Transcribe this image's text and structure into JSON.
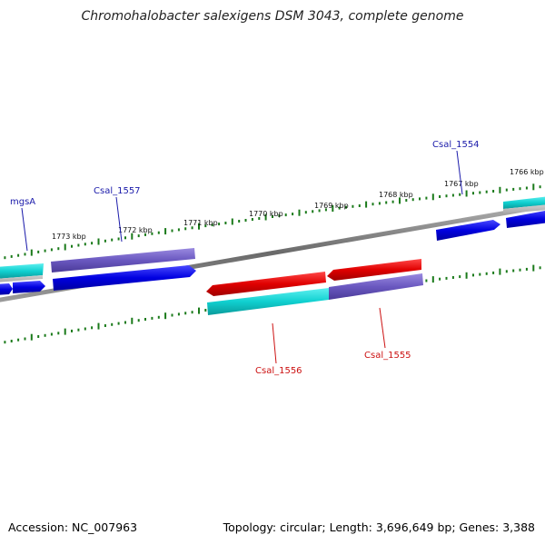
{
  "title": "Chromohalobacter salexigens DSM 3043, complete genome",
  "footer": {
    "accession": "Accession: NC_007963",
    "summary": "Topology: circular; Length: 3,696,649 bp; Genes: 3,388"
  },
  "scale_labels": [
    "1773 kbp",
    "1772 kbp",
    "1771 kbp",
    "1770 kbp",
    "1769 kbp",
    "1768 kbp",
    "1767 kbp",
    "1766 kbp"
  ],
  "gene_labels": {
    "mgsA": "mgsA",
    "csal_1557": "Csal_1557",
    "csal_1554": "Csal_1554",
    "csal_1556": "Csal_1556",
    "csal_1555": "Csal_1555"
  },
  "colors": {
    "forward_cds": "#0a0ad8",
    "reverse_cds": "#e00a0a",
    "forward_label": "#1a1aaa",
    "reverse_label": "#cc1111",
    "cyan_feature": "#19d8d8",
    "purple_feature": "#7a68cc",
    "tick": "#1a7a1a",
    "backbone": "#808080"
  }
}
